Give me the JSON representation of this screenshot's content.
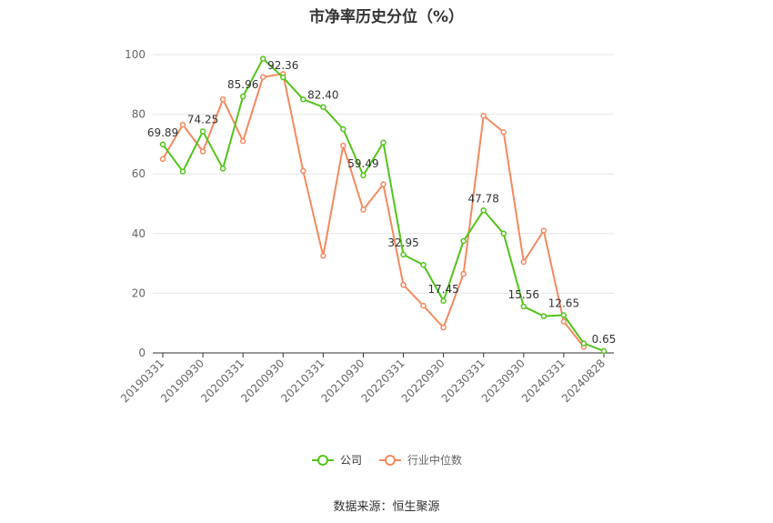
{
  "chart_data": {
    "type": "line",
    "title": "市净率历史分位（%）",
    "source": "数据来源：恒生聚源",
    "ylim": [
      0,
      100
    ],
    "yticks": [
      0,
      20,
      40,
      60,
      80,
      100
    ],
    "grid": true,
    "legend_position": "bottom",
    "x_tick_labels": [
      "20190331",
      "20190930",
      "20200331",
      "20200930",
      "20210331",
      "20210930",
      "20220331",
      "20220930",
      "20230331",
      "20230930",
      "20240331",
      "20240828"
    ],
    "x": [
      "20190331",
      "20190630",
      "20190930",
      "20191231",
      "20200331",
      "20200630",
      "20200930",
      "20201231",
      "20210331",
      "20210630",
      "20210930",
      "20211231",
      "20220331",
      "20220630",
      "20220930",
      "20221231",
      "20230331",
      "20230630",
      "20230930",
      "20231231",
      "20240331",
      "20240630",
      "20240828"
    ],
    "series": [
      {
        "name": "公司",
        "color": "#52c41a",
        "values": [
          69.89,
          60.8,
          74.25,
          61.8,
          85.96,
          98.6,
          92.36,
          85.0,
          82.4,
          75.0,
          59.49,
          70.5,
          32.95,
          29.5,
          17.45,
          37.5,
          47.78,
          40.0,
          15.56,
          12.3,
          12.65,
          3.2,
          0.65
        ],
        "labeled_points": [
          0,
          2,
          4,
          6,
          8,
          10,
          12,
          14,
          16,
          18,
          20,
          22
        ]
      },
      {
        "name": "行业中位数",
        "color": "#f4895f",
        "values": [
          65.0,
          76.5,
          67.5,
          85.0,
          71.0,
          92.5,
          93.5,
          61.0,
          32.5,
          69.5,
          48.0,
          56.5,
          22.8,
          15.8,
          8.5,
          26.5,
          79.5,
          74.0,
          30.5,
          41.0,
          10.5,
          2.0,
          null
        ]
      }
    ]
  }
}
